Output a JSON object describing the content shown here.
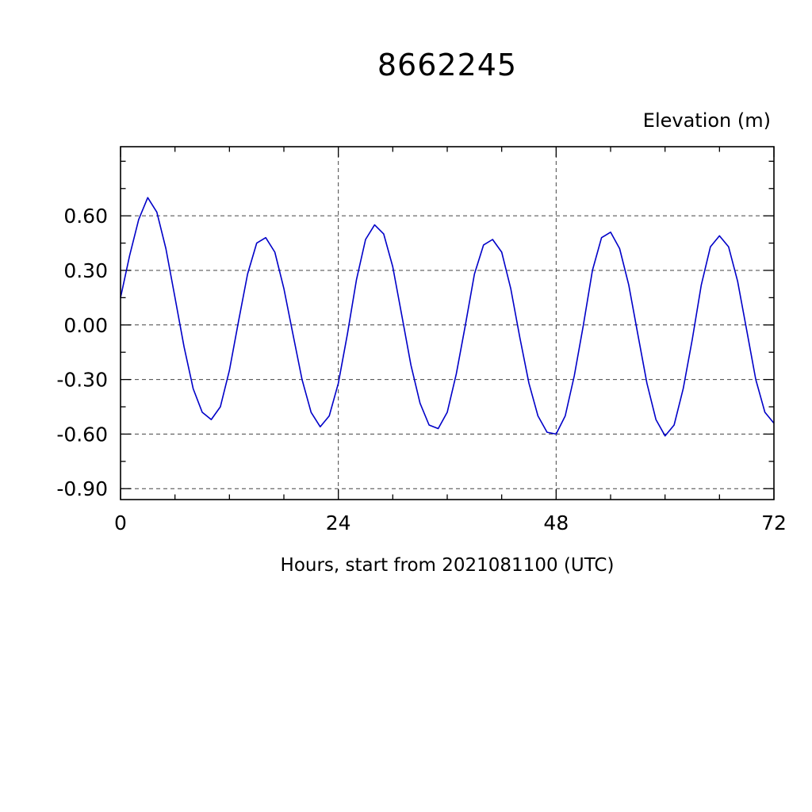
{
  "page": {
    "background": "#ffffff"
  },
  "chart_data": {
    "type": "line",
    "title": "8662245",
    "ylabel": "Elevation (m)",
    "xlabel": "Hours, start from 2021081100 (UTC)",
    "grid": "dashed",
    "legend": "none",
    "xlim": [
      0,
      72
    ],
    "ylim": [
      -0.96,
      0.98
    ],
    "x_major_ticks": [
      0,
      24,
      48,
      72
    ],
    "x_tick_labels": [
      "0",
      "24",
      "48",
      "72"
    ],
    "x_minor_step": 6,
    "y_major_ticks": [
      -0.9,
      -0.6,
      -0.3,
      0.0,
      0.3,
      0.6
    ],
    "y_tick_labels": [
      "-0.90",
      "-0.60",
      "-0.30",
      "0.00",
      "0.30",
      "0.60"
    ],
    "y_minor_step": 0.15,
    "x_gridlines": [
      24,
      48
    ],
    "y_gridlines": [
      -0.9,
      -0.6,
      -0.3,
      0.0,
      0.3,
      0.6
    ],
    "line_color": "#0000c8",
    "x": [
      0,
      1,
      2,
      3,
      4,
      5,
      6,
      7,
      8,
      9,
      10,
      11,
      12,
      13,
      14,
      15,
      16,
      17,
      18,
      19,
      20,
      21,
      22,
      23,
      24,
      25,
      26,
      27,
      28,
      29,
      30,
      31,
      32,
      33,
      34,
      35,
      36,
      37,
      38,
      39,
      40,
      41,
      42,
      43,
      44,
      45,
      46,
      47,
      48,
      49,
      50,
      51,
      52,
      53,
      54,
      55,
      56,
      57,
      58,
      59,
      60,
      61,
      62,
      63,
      64,
      65,
      66,
      67,
      68,
      69,
      70,
      71,
      72
    ],
    "series": [
      {
        "name": "elevation",
        "values": [
          0.15,
          0.38,
          0.58,
          0.7,
          0.62,
          0.42,
          0.15,
          -0.12,
          -0.35,
          -0.48,
          -0.52,
          -0.45,
          -0.25,
          0.02,
          0.28,
          0.45,
          0.48,
          0.4,
          0.2,
          -0.05,
          -0.3,
          -0.48,
          -0.56,
          -0.5,
          -0.32,
          -0.05,
          0.25,
          0.47,
          0.55,
          0.5,
          0.32,
          0.05,
          -0.22,
          -0.43,
          -0.55,
          -0.57,
          -0.48,
          -0.27,
          0.0,
          0.28,
          0.44,
          0.47,
          0.4,
          0.2,
          -0.07,
          -0.32,
          -0.5,
          -0.59,
          -0.6,
          -0.5,
          -0.28,
          0.0,
          0.3,
          0.48,
          0.51,
          0.42,
          0.22,
          -0.05,
          -0.32,
          -0.52,
          -0.61,
          -0.55,
          -0.35,
          -0.08,
          0.22,
          0.43,
          0.49,
          0.43,
          0.24,
          -0.03,
          -0.3,
          -0.48,
          -0.54
        ]
      }
    ]
  }
}
